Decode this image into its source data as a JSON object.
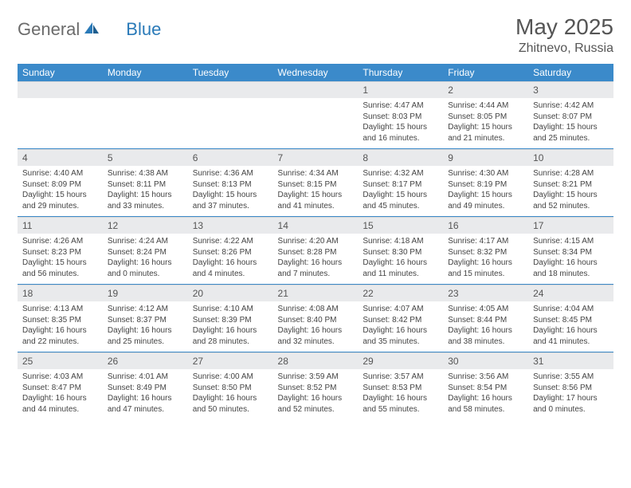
{
  "logo": {
    "text_general": "General",
    "text_blue": "Blue"
  },
  "title": "May 2025",
  "location": "Zhitnevo, Russia",
  "colors": {
    "header_bg": "#3b8aca",
    "header_text": "#ffffff",
    "daynum_bg": "#e9eaec",
    "rule": "#3b8aca",
    "body_text": "#444444",
    "title_text": "#555555",
    "logo_grey": "#6b6b6b",
    "logo_blue": "#2a7ab8"
  },
  "dow": [
    "Sunday",
    "Monday",
    "Tuesday",
    "Wednesday",
    "Thursday",
    "Friday",
    "Saturday"
  ],
  "weeks": [
    [
      null,
      null,
      null,
      null,
      {
        "n": "1",
        "sr": "4:47 AM",
        "ss": "8:03 PM",
        "dl": "15 hours and 16 minutes."
      },
      {
        "n": "2",
        "sr": "4:44 AM",
        "ss": "8:05 PM",
        "dl": "15 hours and 21 minutes."
      },
      {
        "n": "3",
        "sr": "4:42 AM",
        "ss": "8:07 PM",
        "dl": "15 hours and 25 minutes."
      }
    ],
    [
      {
        "n": "4",
        "sr": "4:40 AM",
        "ss": "8:09 PM",
        "dl": "15 hours and 29 minutes."
      },
      {
        "n": "5",
        "sr": "4:38 AM",
        "ss": "8:11 PM",
        "dl": "15 hours and 33 minutes."
      },
      {
        "n": "6",
        "sr": "4:36 AM",
        "ss": "8:13 PM",
        "dl": "15 hours and 37 minutes."
      },
      {
        "n": "7",
        "sr": "4:34 AM",
        "ss": "8:15 PM",
        "dl": "15 hours and 41 minutes."
      },
      {
        "n": "8",
        "sr": "4:32 AM",
        "ss": "8:17 PM",
        "dl": "15 hours and 45 minutes."
      },
      {
        "n": "9",
        "sr": "4:30 AM",
        "ss": "8:19 PM",
        "dl": "15 hours and 49 minutes."
      },
      {
        "n": "10",
        "sr": "4:28 AM",
        "ss": "8:21 PM",
        "dl": "15 hours and 52 minutes."
      }
    ],
    [
      {
        "n": "11",
        "sr": "4:26 AM",
        "ss": "8:23 PM",
        "dl": "15 hours and 56 minutes."
      },
      {
        "n": "12",
        "sr": "4:24 AM",
        "ss": "8:24 PM",
        "dl": "16 hours and 0 minutes."
      },
      {
        "n": "13",
        "sr": "4:22 AM",
        "ss": "8:26 PM",
        "dl": "16 hours and 4 minutes."
      },
      {
        "n": "14",
        "sr": "4:20 AM",
        "ss": "8:28 PM",
        "dl": "16 hours and 7 minutes."
      },
      {
        "n": "15",
        "sr": "4:18 AM",
        "ss": "8:30 PM",
        "dl": "16 hours and 11 minutes."
      },
      {
        "n": "16",
        "sr": "4:17 AM",
        "ss": "8:32 PM",
        "dl": "16 hours and 15 minutes."
      },
      {
        "n": "17",
        "sr": "4:15 AM",
        "ss": "8:34 PM",
        "dl": "16 hours and 18 minutes."
      }
    ],
    [
      {
        "n": "18",
        "sr": "4:13 AM",
        "ss": "8:35 PM",
        "dl": "16 hours and 22 minutes."
      },
      {
        "n": "19",
        "sr": "4:12 AM",
        "ss": "8:37 PM",
        "dl": "16 hours and 25 minutes."
      },
      {
        "n": "20",
        "sr": "4:10 AM",
        "ss": "8:39 PM",
        "dl": "16 hours and 28 minutes."
      },
      {
        "n": "21",
        "sr": "4:08 AM",
        "ss": "8:40 PM",
        "dl": "16 hours and 32 minutes."
      },
      {
        "n": "22",
        "sr": "4:07 AM",
        "ss": "8:42 PM",
        "dl": "16 hours and 35 minutes."
      },
      {
        "n": "23",
        "sr": "4:05 AM",
        "ss": "8:44 PM",
        "dl": "16 hours and 38 minutes."
      },
      {
        "n": "24",
        "sr": "4:04 AM",
        "ss": "8:45 PM",
        "dl": "16 hours and 41 minutes."
      }
    ],
    [
      {
        "n": "25",
        "sr": "4:03 AM",
        "ss": "8:47 PM",
        "dl": "16 hours and 44 minutes."
      },
      {
        "n": "26",
        "sr": "4:01 AM",
        "ss": "8:49 PM",
        "dl": "16 hours and 47 minutes."
      },
      {
        "n": "27",
        "sr": "4:00 AM",
        "ss": "8:50 PM",
        "dl": "16 hours and 50 minutes."
      },
      {
        "n": "28",
        "sr": "3:59 AM",
        "ss": "8:52 PM",
        "dl": "16 hours and 52 minutes."
      },
      {
        "n": "29",
        "sr": "3:57 AM",
        "ss": "8:53 PM",
        "dl": "16 hours and 55 minutes."
      },
      {
        "n": "30",
        "sr": "3:56 AM",
        "ss": "8:54 PM",
        "dl": "16 hours and 58 minutes."
      },
      {
        "n": "31",
        "sr": "3:55 AM",
        "ss": "8:56 PM",
        "dl": "17 hours and 0 minutes."
      }
    ]
  ],
  "labels": {
    "sunrise": "Sunrise:",
    "sunset": "Sunset:",
    "daylight": "Daylight:"
  }
}
